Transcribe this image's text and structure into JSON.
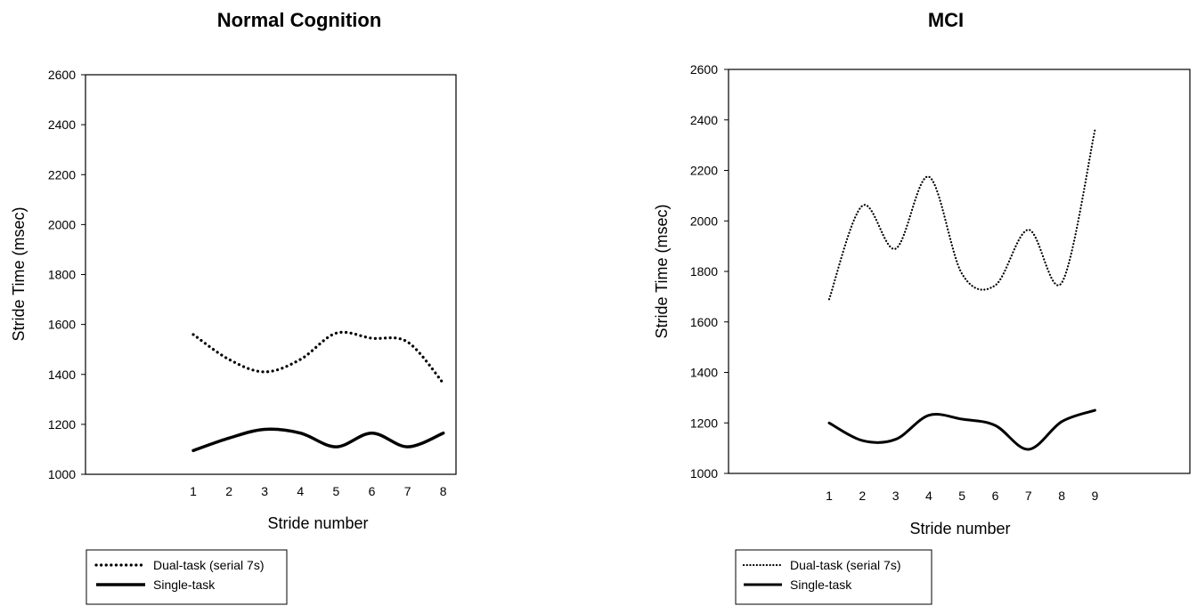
{
  "chart_data": [
    {
      "type": "line",
      "title": "Normal Cognition",
      "xlabel": "Stride number",
      "ylabel": "Stride Time (msec)",
      "ylim": [
        1000,
        2600
      ],
      "yticks": [
        1000,
        1200,
        1400,
        1600,
        1800,
        2000,
        2200,
        2400,
        2600
      ],
      "x": [
        1,
        2,
        3,
        4,
        5,
        6,
        7,
        8
      ],
      "xticks": [
        "1",
        "2",
        "3",
        "4",
        "5",
        "6",
        "7",
        "8"
      ],
      "grid": false,
      "legend_position": "bottom-left",
      "series": [
        {
          "name": "Dual-task (serial 7s)",
          "style": "dotted",
          "values": [
            1560,
            1460,
            1410,
            1460,
            1565,
            1545,
            1530,
            1365
          ]
        },
        {
          "name": "Single-task",
          "style": "solid",
          "values": [
            1095,
            1145,
            1180,
            1165,
            1110,
            1165,
            1110,
            1165
          ]
        }
      ]
    },
    {
      "type": "line",
      "title": "MCI",
      "xlabel": "Stride number",
      "ylabel": "Stride Time (msec)",
      "ylim": [
        1000,
        2600
      ],
      "yticks": [
        1000,
        1200,
        1400,
        1600,
        1800,
        2000,
        2200,
        2400,
        2600
      ],
      "x": [
        1,
        2,
        3,
        4,
        5,
        6,
        7,
        8,
        9
      ],
      "xticks": [
        "1",
        "2",
        "3",
        "4",
        "5",
        "6",
        "7",
        "8",
        "9"
      ],
      "grid": false,
      "legend_position": "bottom-left",
      "series": [
        {
          "name": "Dual-task (serial 7s)",
          "style": "dotted",
          "values": [
            1690,
            2060,
            1890,
            2175,
            1790,
            1745,
            1965,
            1755,
            2360
          ]
        },
        {
          "name": "Single-task",
          "style": "solid",
          "values": [
            1200,
            1130,
            1135,
            1230,
            1215,
            1190,
            1095,
            1205,
            1250
          ]
        }
      ]
    }
  ]
}
